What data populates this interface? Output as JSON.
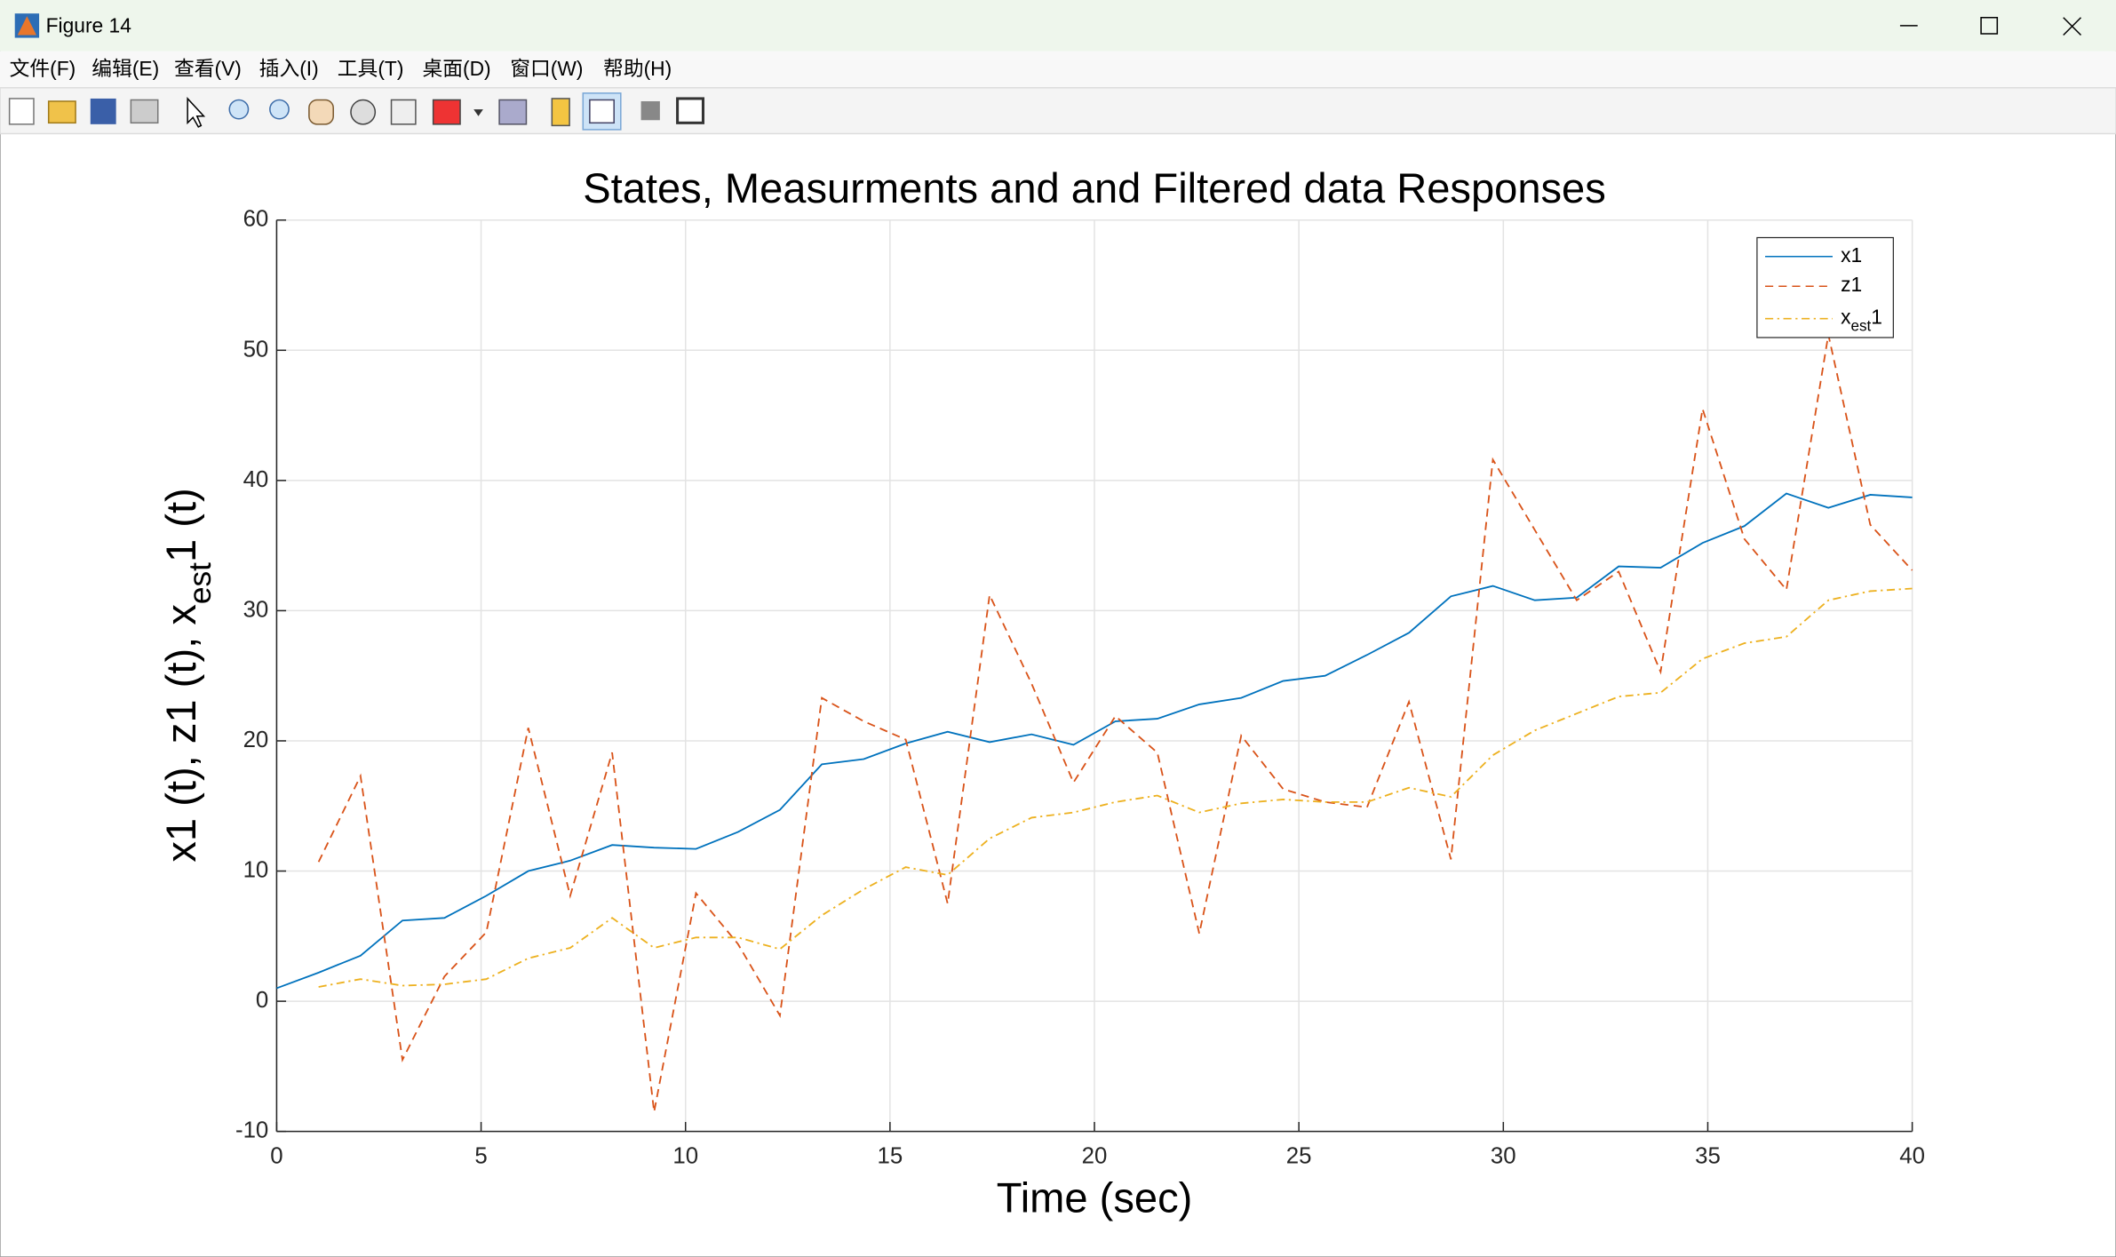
{
  "window": {
    "title": "Figure 14",
    "menu": [
      "文件(F)",
      "编辑(E)",
      "查看(V)",
      "插入(I)",
      "工具(T)",
      "桌面(D)",
      "窗口(W)",
      "帮助(H)"
    ]
  },
  "chart_data": {
    "type": "line",
    "title": "States, Measurments and and Filtered data Responses",
    "xlabel": "Time (sec)",
    "ylabel": "x1 (t), z1 (t), x_{est}1 (t)",
    "x": [
      0,
      1.026,
      2.051,
      3.077,
      4.103,
      5.128,
      6.154,
      7.179,
      8.205,
      9.231,
      10.256,
      11.282,
      12.308,
      13.333,
      14.359,
      15.385,
      16.41,
      17.436,
      18.462,
      19.487,
      20.513,
      21.538,
      22.564,
      23.59,
      24.615,
      25.641,
      26.667,
      27.692,
      28.718,
      29.744,
      30.769,
      31.795,
      32.821,
      33.846,
      34.872,
      35.897,
      36.923,
      37.949,
      38.974,
      40
    ],
    "series": [
      {
        "name": "x1",
        "color": "#0072BD",
        "linestyle": "solid",
        "values": [
          1.0,
          2.2,
          3.5,
          6.2,
          6.4,
          8.1,
          10.0,
          10.8,
          12.0,
          11.8,
          11.7,
          13.0,
          14.7,
          18.2,
          18.6,
          19.8,
          20.7,
          19.9,
          20.5,
          19.7,
          21.5,
          21.7,
          22.8,
          23.3,
          24.6,
          25.0,
          26.6,
          28.3,
          31.1,
          31.9,
          30.8,
          31.0,
          33.4,
          33.3,
          35.2,
          36.5,
          39.0,
          37.9,
          38.9,
          38.7
        ]
      },
      {
        "name": "z1",
        "color": "#D95319",
        "linestyle": "dashed",
        "values": [
          null,
          10.7,
          17.3,
          -4.5,
          1.9,
          5.3,
          21.0,
          8.1,
          19.1,
          -8.5,
          8.3,
          4.4,
          -1.1,
          23.3,
          21.5,
          20.1,
          7.5,
          31.2,
          24.4,
          16.8,
          21.9,
          19.1,
          5.2,
          20.4,
          16.3,
          15.3,
          14.9,
          23.0,
          10.9,
          41.6,
          36.2,
          30.8,
          33.0,
          25.3,
          45.5,
          35.5,
          31.6,
          51.2,
          36.6,
          33.1
        ]
      },
      {
        "name": "x_{est}1",
        "color": "#EDB120",
        "linestyle": "dashdot",
        "values": [
          null,
          1.1,
          1.7,
          1.2,
          1.3,
          1.7,
          3.3,
          4.1,
          6.4,
          4.1,
          4.9,
          4.9,
          4.0,
          6.6,
          8.6,
          10.3,
          9.7,
          12.5,
          14.1,
          14.5,
          15.3,
          15.8,
          14.5,
          15.2,
          15.5,
          15.3,
          15.3,
          16.4,
          15.7,
          18.9,
          20.8,
          22.1,
          23.4,
          23.7,
          26.3,
          27.5,
          28.0,
          30.8,
          31.5,
          31.7
        ]
      }
    ],
    "xlim": [
      0,
      40
    ],
    "ylim": [
      -10,
      60
    ],
    "xticks": [
      0,
      5,
      10,
      15,
      20,
      25,
      30,
      35,
      40
    ],
    "yticks": [
      -10,
      0,
      10,
      20,
      30,
      40,
      50,
      60
    ],
    "grid": true,
    "legend": "upper right"
  }
}
